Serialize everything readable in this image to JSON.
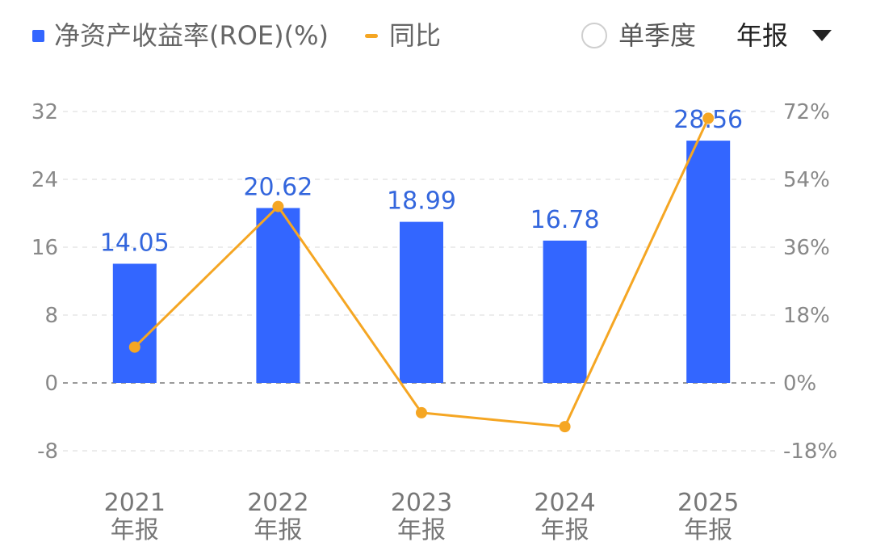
{
  "legend": {
    "bar_label": "净资产收益率(ROE)(%)",
    "line_label": "同比",
    "bar_color": "#3366ff",
    "line_color": "#f5a623"
  },
  "controls": {
    "quarter_label": "单季度",
    "period_label": "年报"
  },
  "chart_data": {
    "type": "bar",
    "categories": [
      "2021",
      "2022",
      "2023",
      "2024",
      "2025"
    ],
    "category_sub": "年报",
    "series": [
      {
        "name": "净资产收益率(ROE)(%)",
        "type": "bar",
        "axis": "left",
        "values": [
          14.05,
          20.62,
          18.99,
          16.78,
          28.56
        ]
      },
      {
        "name": "同比",
        "type": "line",
        "axis": "right",
        "values": [
          9.5,
          46.8,
          -7.9,
          -11.6,
          70.2
        ]
      }
    ],
    "y_left": {
      "min": -8,
      "max": 32,
      "ticks": [
        32,
        24,
        16,
        8,
        0,
        -8
      ]
    },
    "y_right": {
      "min": -18,
      "max": 72,
      "ticks": [
        "72%",
        "54%",
        "36%",
        "18%",
        "0%",
        "-18%"
      ]
    },
    "grid": true
  }
}
